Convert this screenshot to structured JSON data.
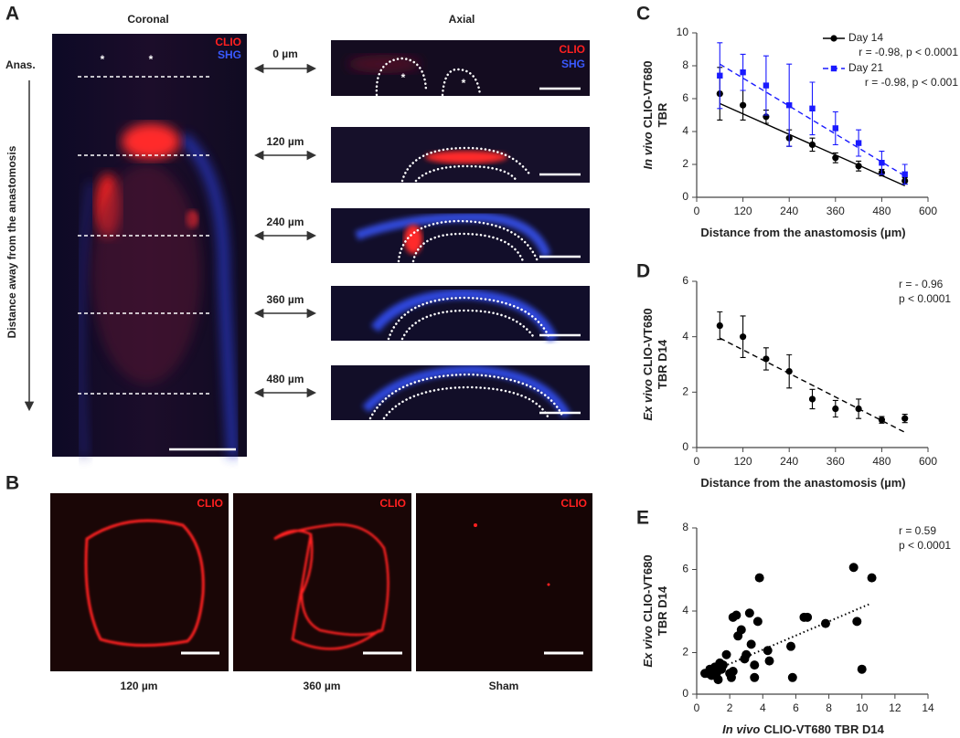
{
  "panel_labels": [
    "A",
    "B",
    "C",
    "D",
    "E"
  ],
  "panel_a": {
    "coronal_title": "Coronal",
    "axial_title": "Axial",
    "clio": "CLIO",
    "shg": "SHG",
    "anas": "Anas.",
    "axis_label": "Distance away from the anastomosis",
    "asterisk": "*",
    "depths": [
      "0 µm",
      "120 µm",
      "240 µm",
      "360 µm",
      "480 µm"
    ]
  },
  "panel_b": {
    "clio": "CLIO",
    "captions": [
      "120 µm",
      "360 µm",
      "Sham"
    ]
  },
  "chart_data": [
    {
      "type": "scatter",
      "xlabel": {
        "lines": [
          "Distance from the anastomosis (µm)"
        ]
      },
      "ylabel": {
        "italic": "In vivo",
        "lines": [
          "CLIO-VT680",
          "TBR"
        ]
      },
      "xlim": [
        0,
        600
      ],
      "xticks": [
        0,
        120,
        240,
        360,
        480,
        600
      ],
      "ylim": [
        0,
        10
      ],
      "yticks": [
        0,
        2,
        4,
        6,
        8,
        10
      ],
      "series": [
        {
          "name": "Day 14",
          "stats": "r = -0.98, p < 0.0001",
          "color": "#000000",
          "marker": "circle",
          "line_style": "solid",
          "x": [
            60,
            120,
            180,
            240,
            300,
            360,
            420,
            480,
            540
          ],
          "values": [
            6.3,
            5.6,
            4.9,
            3.6,
            3.2,
            2.4,
            1.9,
            1.5,
            1.0
          ],
          "errors": [
            1.6,
            0.9,
            0.4,
            0.5,
            0.4,
            0.3,
            0.3,
            0.2,
            0.2
          ],
          "fit_x": [
            60,
            540
          ],
          "fit_y": [
            5.7,
            0.7
          ]
        },
        {
          "name": "Day 21",
          "stats": "r = -0.98, p < 0.001",
          "color": "#1a1aff",
          "marker": "square",
          "line_style": "dashed",
          "x": [
            60,
            120,
            180,
            240,
            300,
            360,
            420,
            480,
            540
          ],
          "values": [
            7.4,
            7.6,
            6.8,
            5.6,
            5.4,
            4.2,
            3.3,
            2.1,
            1.4
          ],
          "errors": [
            2.0,
            1.1,
            1.8,
            2.5,
            1.6,
            1.0,
            0.8,
            0.7,
            0.6
          ],
          "fit_x": [
            60,
            540
          ],
          "fit_y": [
            8.1,
            1.3
          ]
        }
      ]
    },
    {
      "type": "scatter",
      "xlabel": {
        "lines": [
          "Distance from the anastomosis (µm)"
        ]
      },
      "ylabel": {
        "italic": "Ex vivo",
        "lines": [
          "CLIO-VT680",
          "TBR D14"
        ]
      },
      "xlim": [
        0,
        600
      ],
      "xticks": [
        0,
        120,
        240,
        360,
        480,
        600
      ],
      "ylim": [
        0,
        6
      ],
      "yticks": [
        0,
        2,
        4,
        6
      ],
      "annotations": [
        "r = - 0.96",
        "p < 0.0001"
      ],
      "series": [
        {
          "color": "#000000",
          "marker": "circle",
          "line_style": "dashed",
          "x": [
            60,
            120,
            180,
            240,
            300,
            360,
            420,
            480,
            540
          ],
          "values": [
            4.4,
            4.0,
            3.2,
            2.75,
            1.75,
            1.4,
            1.4,
            1.0,
            1.05
          ],
          "errors": [
            0.5,
            0.75,
            0.4,
            0.6,
            0.35,
            0.3,
            0.35,
            0.12,
            0.15
          ],
          "fit_x": [
            60,
            540
          ],
          "fit_y": [
            3.95,
            0.55
          ]
        }
      ]
    },
    {
      "type": "scatter",
      "xlabel": {
        "italic": "In vivo",
        "lines": [
          "CLIO-VT680 TBR D14"
        ]
      },
      "ylabel": {
        "italic": "Ex vivo",
        "lines": [
          "CLIO-VT680",
          "TBR D14"
        ]
      },
      "xlim": [
        0,
        14
      ],
      "xticks": [
        0,
        2,
        4,
        6,
        8,
        10,
        12,
        14
      ],
      "ylim": [
        0,
        8
      ],
      "yticks": [
        0,
        2,
        4,
        6,
        8
      ],
      "annotations": [
        "r = 0.59",
        "p < 0.0001"
      ],
      "series": [
        {
          "color": "#000000",
          "marker": "big-circle",
          "line_style": "dotted",
          "x": [
            0.5,
            0.7,
            0.8,
            0.9,
            1.0,
            1.1,
            1.2,
            1.3,
            1.4,
            1.5,
            1.6,
            1.8,
            2.0,
            2.1,
            2.2,
            2.2,
            2.4,
            2.5,
            2.7,
            2.9,
            3.0,
            3.2,
            3.3,
            3.5,
            3.5,
            3.7,
            3.8,
            4.3,
            4.4,
            5.7,
            5.8,
            6.5,
            6.7,
            7.8,
            9.5,
            9.7,
            10.0,
            10.6
          ],
          "values": [
            1.0,
            1.0,
            1.2,
            0.9,
            1.1,
            1.3,
            1.0,
            0.7,
            1.5,
            1.2,
            1.4,
            1.9,
            1.0,
            0.8,
            1.1,
            3.7,
            3.8,
            2.8,
            3.1,
            1.7,
            1.9,
            3.9,
            2.4,
            1.4,
            0.8,
            3.5,
            5.6,
            2.1,
            1.6,
            2.3,
            0.8,
            3.7,
            3.7,
            3.4,
            6.1,
            3.5,
            1.2,
            5.6
          ],
          "fit_x": [
            0.5,
            10.5
          ],
          "fit_y": [
            0.95,
            4.35
          ]
        }
      ]
    }
  ]
}
